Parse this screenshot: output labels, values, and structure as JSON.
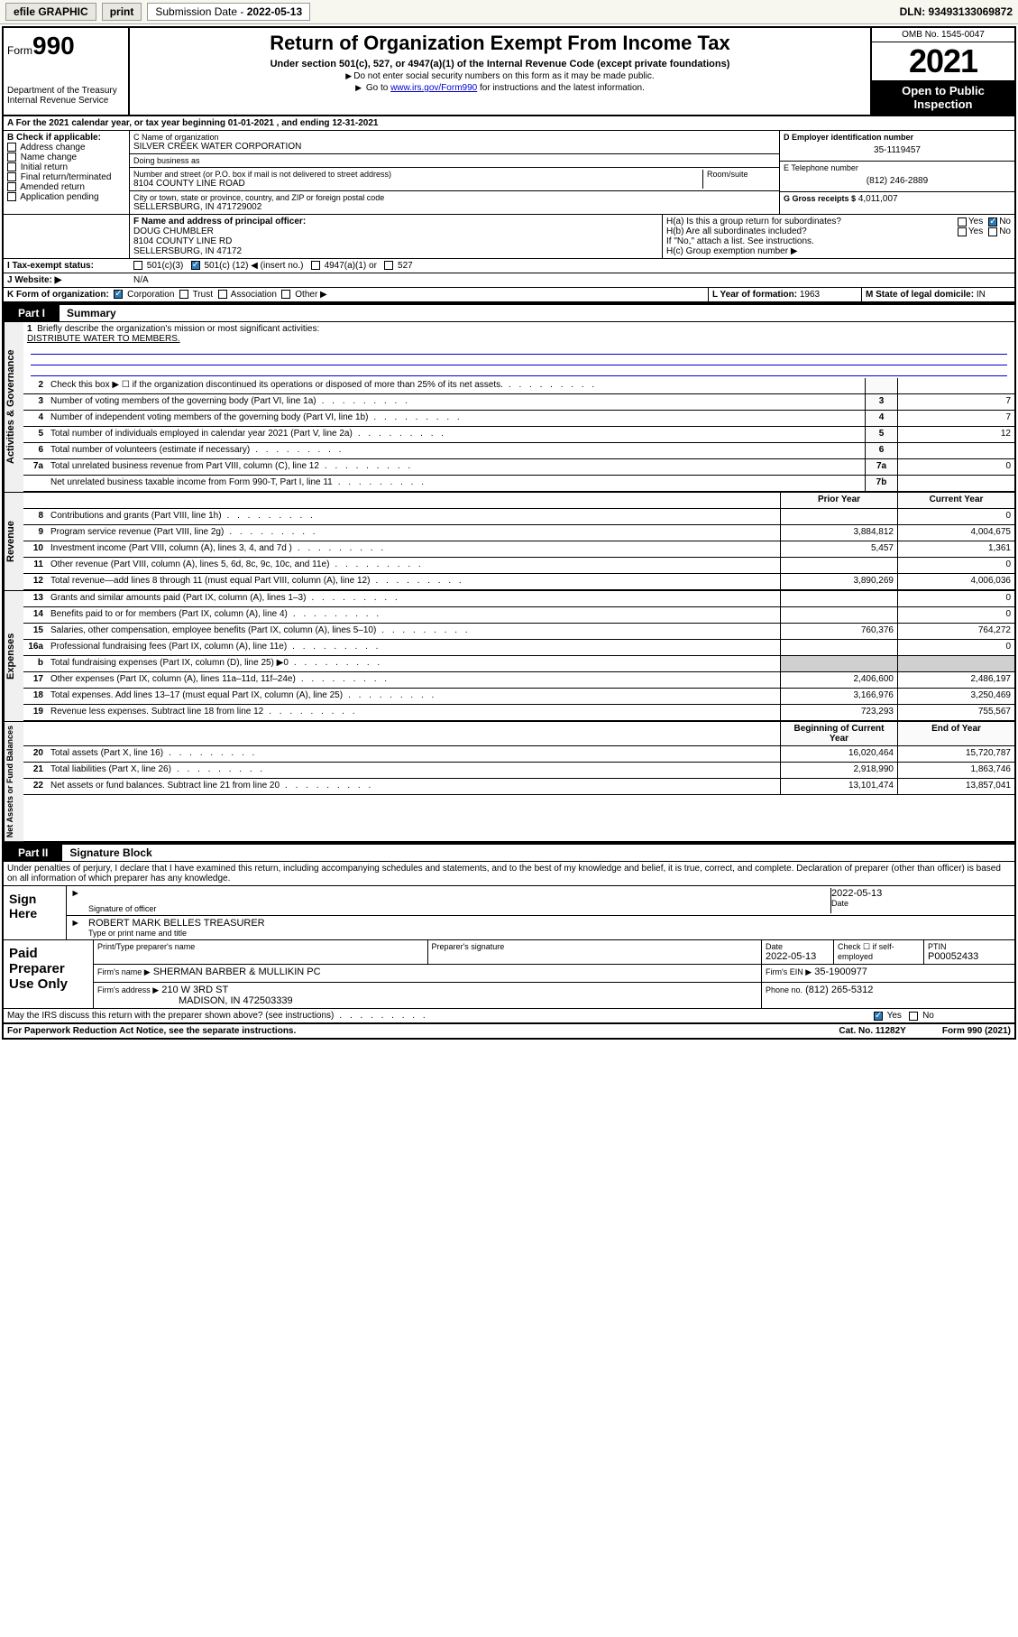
{
  "topbar": {
    "efile": "efile GRAPHIC",
    "print": "print",
    "subdate_label": "Submission Date - ",
    "subdate": "2022-05-13",
    "dln": "DLN: 93493133069872"
  },
  "header": {
    "form_prefix": "Form",
    "form_no": "990",
    "dept": "Department of the Treasury",
    "irs": "Internal Revenue Service",
    "title": "Return of Organization Exempt From Income Tax",
    "sub": "Under section 501(c), 527, or 4947(a)(1) of the Internal Revenue Code (except private foundations)",
    "note1": "Do not enter social security numbers on this form as it may be made public.",
    "note2_a": "Go to ",
    "note2_link": "www.irs.gov/Form990",
    "note2_b": " for instructions and the latest information.",
    "omb": "OMB No. 1545-0047",
    "year": "2021",
    "open": "Open to Public Inspection"
  },
  "row_a": "A For the 2021 calendar year, or tax year beginning 01-01-2021   , and ending 12-31-2021",
  "block_b": {
    "label": "B Check if applicable:",
    "items": [
      "Address change",
      "Name change",
      "Initial return",
      "Final return/terminated",
      "Amended return",
      "Application pending"
    ]
  },
  "block_c": {
    "name_label": "C Name of organization",
    "name": "SILVER CREEK WATER CORPORATION",
    "dba_label": "Doing business as",
    "dba": "",
    "addr_label": "Number and street (or P.O. box if mail is not delivered to street address)",
    "room_label": "Room/suite",
    "addr": "8104 COUNTY LINE ROAD",
    "city_label": "City or town, state or province, country, and ZIP or foreign postal code",
    "city": "SELLERSBURG, IN  471729002"
  },
  "block_d": {
    "label": "D Employer identification number",
    "val": "35-1119457"
  },
  "block_e": {
    "label": "E Telephone number",
    "val": "(812) 246-2889"
  },
  "block_g": {
    "label": "G Gross receipts $",
    "val": "4,011,007"
  },
  "block_f": {
    "label": "F  Name and address of principal officer:",
    "l1": "DOUG CHUMBLER",
    "l2": "8104 COUNTY LINE RD",
    "l3": "SELLERSBURG, IN  47172"
  },
  "block_h": {
    "a_label": "H(a)  Is this a group return for subordinates?",
    "b_label": "H(b)  Are all subordinates included?",
    "b_note": "If \"No,\" attach a list. See instructions.",
    "c_label": "H(c)  Group exemption number ▶",
    "yes": "Yes",
    "no": "No"
  },
  "row_i": {
    "label": "I   Tax-exempt status:",
    "o1": "501(c)(3)",
    "o2a": "501(c) (",
    "o2b": "12",
    "o2c": ") ◀ (insert no.)",
    "o3": "4947(a)(1) or",
    "o4": "527"
  },
  "row_j": {
    "label": "J   Website: ▶",
    "val": "N/A"
  },
  "row_k": {
    "label": "K Form of organization:",
    "opts": [
      "Corporation",
      "Trust",
      "Association",
      "Other ▶"
    ],
    "l_label": "L Year of formation:",
    "l_val": "1963",
    "m_label": "M State of legal domicile:",
    "m_val": "IN"
  },
  "part1": {
    "tab": "Part I",
    "title": "Summary"
  },
  "mission": {
    "num": "1",
    "label": "Briefly describe the organization's mission or most significant activities:",
    "text": "DISTRIBUTE WATER TO MEMBERS."
  },
  "gov_lines": [
    {
      "n": "2",
      "d": "Check this box ▶ ☐  if the organization discontinued its operations or disposed of more than 25% of its net assets.",
      "box": "",
      "v": ""
    },
    {
      "n": "3",
      "d": "Number of voting members of the governing body (Part VI, line 1a)",
      "box": "3",
      "v": "7"
    },
    {
      "n": "4",
      "d": "Number of independent voting members of the governing body (Part VI, line 1b)",
      "box": "4",
      "v": "7"
    },
    {
      "n": "5",
      "d": "Total number of individuals employed in calendar year 2021 (Part V, line 2a)",
      "box": "5",
      "v": "12"
    },
    {
      "n": "6",
      "d": "Total number of volunteers (estimate if necessary)",
      "box": "6",
      "v": ""
    },
    {
      "n": "7a",
      "d": "Total unrelated business revenue from Part VIII, column (C), line 12",
      "box": "7a",
      "v": "0"
    },
    {
      "n": "",
      "d": "Net unrelated business taxable income from Form 990-T, Part I, line 11",
      "box": "7b",
      "v": ""
    }
  ],
  "year_head": {
    "prior": "Prior Year",
    "current": "Current Year"
  },
  "rev_lines": [
    {
      "n": "8",
      "d": "Contributions and grants (Part VIII, line 1h)",
      "p": "",
      "c": "0"
    },
    {
      "n": "9",
      "d": "Program service revenue (Part VIII, line 2g)",
      "p": "3,884,812",
      "c": "4,004,675"
    },
    {
      "n": "10",
      "d": "Investment income (Part VIII, column (A), lines 3, 4, and 7d )",
      "p": "5,457",
      "c": "1,361"
    },
    {
      "n": "11",
      "d": "Other revenue (Part VIII, column (A), lines 5, 6d, 8c, 9c, 10c, and 11e)",
      "p": "",
      "c": "0"
    },
    {
      "n": "12",
      "d": "Total revenue—add lines 8 through 11 (must equal Part VIII, column (A), line 12)",
      "p": "3,890,269",
      "c": "4,006,036"
    }
  ],
  "exp_lines": [
    {
      "n": "13",
      "d": "Grants and similar amounts paid (Part IX, column (A), lines 1–3)",
      "p": "",
      "c": "0"
    },
    {
      "n": "14",
      "d": "Benefits paid to or for members (Part IX, column (A), line 4)",
      "p": "",
      "c": "0"
    },
    {
      "n": "15",
      "d": "Salaries, other compensation, employee benefits (Part IX, column (A), lines 5–10)",
      "p": "760,376",
      "c": "764,272"
    },
    {
      "n": "16a",
      "d": "Professional fundraising fees (Part IX, column (A), line 11e)",
      "p": "",
      "c": "0"
    },
    {
      "n": "b",
      "d": "Total fundraising expenses (Part IX, column (D), line 25) ▶0",
      "p": "shaded",
      "c": "shaded"
    },
    {
      "n": "17",
      "d": "Other expenses (Part IX, column (A), lines 11a–11d, 11f–24e)",
      "p": "2,406,600",
      "c": "2,486,197"
    },
    {
      "n": "18",
      "d": "Total expenses. Add lines 13–17 (must equal Part IX, column (A), line 25)",
      "p": "3,166,976",
      "c": "3,250,469"
    },
    {
      "n": "19",
      "d": "Revenue less expenses. Subtract line 18 from line 12",
      "p": "723,293",
      "c": "755,567"
    }
  ],
  "na_head": {
    "begin": "Beginning of Current Year",
    "end": "End of Year"
  },
  "na_lines": [
    {
      "n": "20",
      "d": "Total assets (Part X, line 16)",
      "p": "16,020,464",
      "c": "15,720,787"
    },
    {
      "n": "21",
      "d": "Total liabilities (Part X, line 26)",
      "p": "2,918,990",
      "c": "1,863,746"
    },
    {
      "n": "22",
      "d": "Net assets or fund balances. Subtract line 21 from line 20",
      "p": "13,101,474",
      "c": "13,857,041"
    }
  ],
  "part2": {
    "tab": "Part II",
    "title": "Signature Block"
  },
  "penalty": "Under penalties of perjury, I declare that I have examined this return, including accompanying schedules and statements, and to the best of my knowledge and belief, it is true, correct, and complete. Declaration of preparer (other than officer) is based on all information of which preparer has any knowledge.",
  "sign": {
    "here": "Sign Here",
    "sig_label": "Signature of officer",
    "date_label": "Date",
    "date": "2022-05-13",
    "name": "ROBERT MARK BELLES  TREASURER",
    "name_label": "Type or print name and title"
  },
  "paid": {
    "title": "Paid Preparer Use Only",
    "h1": "Print/Type preparer's name",
    "h2": "Preparer's signature",
    "h3": "Date",
    "date": "2022-05-13",
    "h4": "Check ☐ if self-employed",
    "h5": "PTIN",
    "ptin": "P00052433",
    "firm_label": "Firm's name    ▶",
    "firm": "SHERMAN BARBER & MULLIKIN PC",
    "ein_label": "Firm's EIN ▶",
    "ein": "35-1900977",
    "addr_label": "Firm's address ▶",
    "addr1": "210 W 3RD ST",
    "addr2": "MADISON, IN  472503339",
    "phone_label": "Phone no.",
    "phone": "(812) 265-5312"
  },
  "discuss": {
    "q": "May the IRS discuss this return with the preparer shown above? (see instructions)",
    "yes": "Yes",
    "no": "No"
  },
  "footer": {
    "l": "For Paperwork Reduction Act Notice, see the separate instructions.",
    "m": "Cat. No. 11282Y",
    "r": "Form 990 (2021)"
  },
  "vert_labels": {
    "gov": "Activities & Governance",
    "rev": "Revenue",
    "exp": "Expenses",
    "na": "Net Assets or Fund Balances"
  }
}
